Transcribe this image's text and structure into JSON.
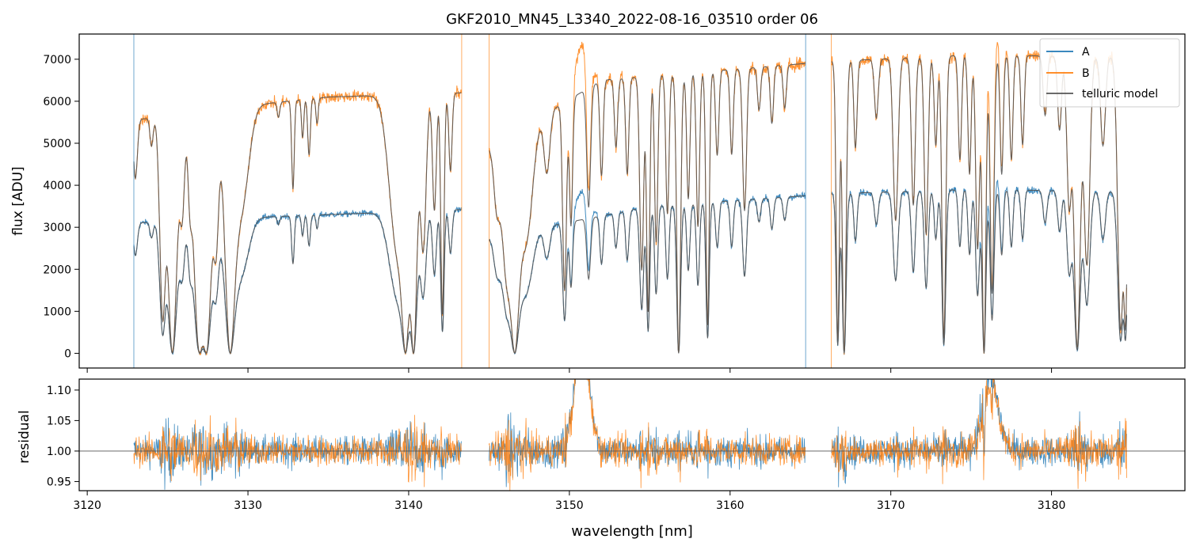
{
  "chart_data": {
    "type": "line",
    "title": "GKF2010_MN45_L3340_2022-08-16_03510  order 06",
    "xlabel": "wavelength [nm]",
    "xlim": [
      3119.5,
      3188.3
    ],
    "x_ticks": [
      3120,
      3130,
      3140,
      3150,
      3160,
      3170,
      3180
    ],
    "x_tick_labels": [
      "3120",
      "3130",
      "3140",
      "3150",
      "3160",
      "3170",
      "3180"
    ],
    "legend_position": "top-right",
    "segments": [
      [
        3122.9,
        3143.3
      ],
      [
        3145.0,
        3164.7
      ],
      [
        3166.3,
        3184.7
      ]
    ],
    "panels": [
      {
        "name": "flux",
        "ylabel": "flux [ADU]",
        "ylim": [
          -350,
          7600
        ],
        "y_ticks": [
          0,
          1000,
          2000,
          3000,
          4000,
          5000,
          6000,
          7000
        ],
        "y_tick_labels": [
          "0",
          "1000",
          "2000",
          "3000",
          "4000",
          "5000",
          "6000",
          "7000"
        ],
        "series": [
          {
            "name": "A",
            "color": "#1f77b4",
            "continuum": [
              [
                3122.9,
                3100
              ],
              [
                3130,
                3230
              ],
              [
                3143.3,
                3420
              ],
              [
                3145,
                2750
              ],
              [
                3155,
                3500
              ],
              [
                3164.7,
                3750
              ],
              [
                3166.3,
                3800
              ],
              [
                3175,
                3900
              ],
              [
                3184.7,
                3850
              ]
            ],
            "bumps": [
              [
                3150.8,
                0.45,
                650
              ],
              [
                3176.2,
                0.5,
                450
              ]
            ],
            "noise": 0.02
          },
          {
            "name": "B",
            "color": "#ff7f0e",
            "continuum": [
              [
                3122.9,
                5550
              ],
              [
                3130,
                5900
              ],
              [
                3135,
                6100
              ],
              [
                3143.3,
                6200
              ],
              [
                3145,
                4900
              ],
              [
                3152,
                6500
              ],
              [
                3164.7,
                6900
              ],
              [
                3166.3,
                6950
              ],
              [
                3175,
                7100
              ],
              [
                3184.7,
                7050
              ]
            ],
            "bumps": [
              [
                3150.8,
                0.45,
                1100
              ],
              [
                3176.2,
                0.5,
                750
              ]
            ],
            "noise": 0.02
          },
          {
            "name": "telluric model",
            "color": "#555555",
            "model_of": [
              "A",
              "B"
            ]
          }
        ]
      },
      {
        "name": "residual",
        "ylabel": "residual",
        "ylim": [
          0.935,
          1.118
        ],
        "y_ticks": [
          0.95,
          1.0,
          1.05,
          1.1
        ],
        "y_tick_labels": [
          "0.95",
          "1.00",
          "1.05",
          "1.10"
        ],
        "reference_line": 1.0,
        "series": [
          {
            "name": "A",
            "color": "#1f77b4"
          },
          {
            "name": "B",
            "color": "#ff7f0e"
          }
        ]
      }
    ],
    "telluric_lines": [
      [
        3123.0,
        0.25,
        0.12
      ],
      [
        3124.0,
        0.12,
        0.1
      ],
      [
        3124.7,
        0.85,
        0.18
      ],
      [
        3125.3,
        1.0,
        0.28
      ],
      [
        3125.9,
        0.4,
        0.15
      ],
      [
        3126.4,
        0.3,
        0.12
      ],
      [
        3127.0,
        1.0,
        0.35
      ],
      [
        3127.4,
        1.0,
        0.3
      ],
      [
        3128.0,
        0.55,
        0.18
      ],
      [
        3128.9,
        1.0,
        0.32
      ],
      [
        3129.6,
        0.4,
        0.45
      ],
      [
        3131.9,
        0.06,
        0.08
      ],
      [
        3132.8,
        0.35,
        0.08
      ],
      [
        3133.4,
        0.15,
        0.07
      ],
      [
        3133.8,
        0.22,
        0.08
      ],
      [
        3134.3,
        0.1,
        0.07
      ],
      [
        3139.3,
        0.6,
        0.5
      ],
      [
        3139.8,
        1.0,
        0.25
      ],
      [
        3140.3,
        1.0,
        0.22
      ],
      [
        3140.9,
        0.6,
        0.18
      ],
      [
        3141.6,
        0.45,
        0.12
      ],
      [
        3142.1,
        0.85,
        0.1
      ],
      [
        3142.6,
        0.3,
        0.1
      ],
      [
        3145.5,
        0.3,
        0.2
      ],
      [
        3146.1,
        0.6,
        0.3
      ],
      [
        3146.6,
        1.0,
        0.3
      ],
      [
        3147.3,
        0.5,
        0.4
      ],
      [
        3148.6,
        0.25,
        0.18
      ],
      [
        3149.7,
        0.75,
        0.12
      ],
      [
        3150.1,
        0.5,
        0.1
      ],
      [
        3151.2,
        0.45,
        0.12
      ],
      [
        3152.0,
        0.35,
        0.1
      ],
      [
        3152.9,
        0.25,
        0.1
      ],
      [
        3153.6,
        0.35,
        0.1
      ],
      [
        3154.5,
        0.7,
        0.12
      ],
      [
        3154.9,
        0.85,
        0.1
      ],
      [
        3155.4,
        0.6,
        0.1
      ],
      [
        3156.1,
        0.5,
        0.1
      ],
      [
        3156.8,
        1.0,
        0.12
      ],
      [
        3157.4,
        0.45,
        0.1
      ],
      [
        3158.0,
        0.55,
        0.1
      ],
      [
        3158.6,
        0.9,
        0.1
      ],
      [
        3159.2,
        0.3,
        0.1
      ],
      [
        3160.1,
        0.3,
        0.1
      ],
      [
        3160.9,
        0.5,
        0.12
      ],
      [
        3161.8,
        0.15,
        0.1
      ],
      [
        3162.6,
        0.2,
        0.1
      ],
      [
        3163.4,
        0.15,
        0.1
      ],
      [
        3166.7,
        0.95,
        0.1
      ],
      [
        3167.1,
        1.0,
        0.12
      ],
      [
        3167.8,
        0.3,
        0.1
      ],
      [
        3169.1,
        0.2,
        0.12
      ],
      [
        3170.3,
        0.55,
        0.15
      ],
      [
        3171.4,
        0.5,
        0.12
      ],
      [
        3172.2,
        0.6,
        0.12
      ],
      [
        3172.8,
        0.3,
        0.1
      ],
      [
        3173.3,
        0.95,
        0.12
      ],
      [
        3174.3,
        0.35,
        0.1
      ],
      [
        3174.9,
        0.4,
        0.1
      ],
      [
        3175.4,
        0.65,
        0.12
      ],
      [
        3175.8,
        1.0,
        0.12
      ],
      [
        3176.3,
        0.8,
        0.12
      ],
      [
        3176.9,
        0.4,
        0.1
      ],
      [
        3177.5,
        0.35,
        0.1
      ],
      [
        3178.2,
        0.3,
        0.1
      ],
      [
        3179.6,
        0.2,
        0.12
      ],
      [
        3180.5,
        0.25,
        0.12
      ],
      [
        3181.1,
        0.5,
        0.15
      ],
      [
        3181.6,
        0.98,
        0.2
      ],
      [
        3182.2,
        0.7,
        0.18
      ],
      [
        3183.2,
        0.3,
        0.15
      ],
      [
        3184.3,
        0.92,
        0.18
      ],
      [
        3184.6,
        0.9,
        0.12
      ]
    ]
  }
}
